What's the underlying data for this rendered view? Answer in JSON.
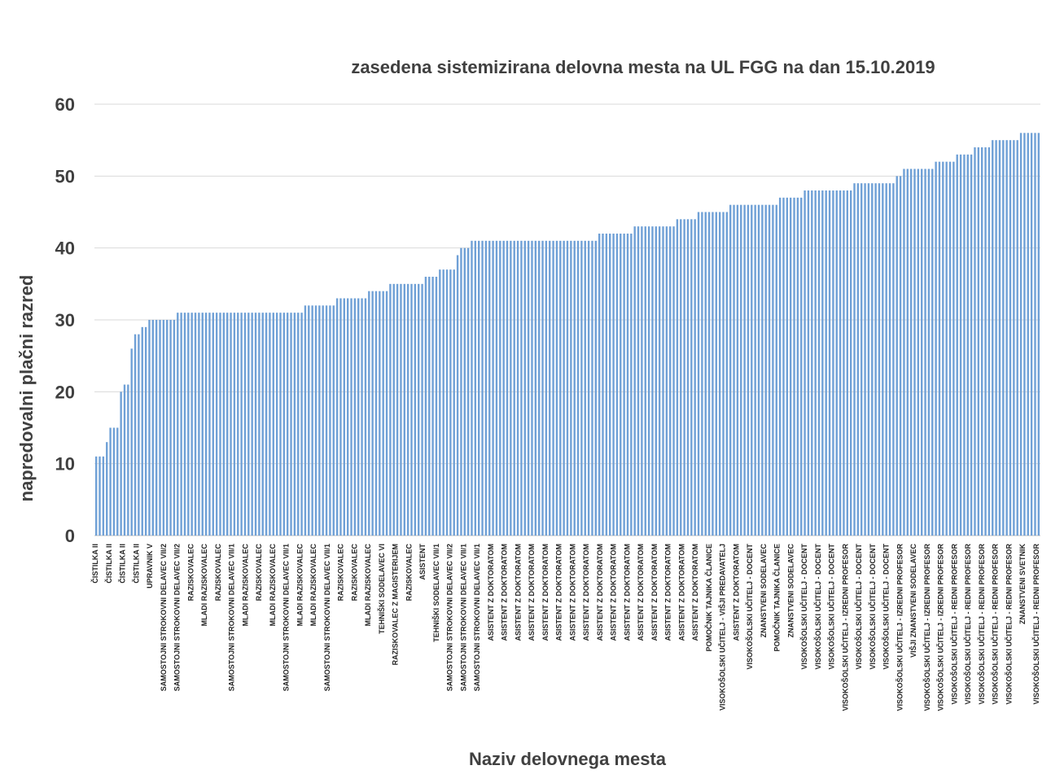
{
  "chart_data": {
    "type": "bar",
    "title": "zasedena sistemizirana delovna mesta na UL FGG na dan 15.10.2019",
    "xlabel": "Naziv delovnega mesta",
    "ylabel": "napredovalni plačni razred",
    "ylim": [
      0,
      60
    ],
    "yticks": [
      0,
      10,
      20,
      30,
      40,
      50,
      60
    ],
    "grid": true,
    "legend": "none",
    "bar_color": "#6fa0d6",
    "segments": [
      {
        "value": 11,
        "count": 3
      },
      {
        "value": 13,
        "count": 1
      },
      {
        "value": 15,
        "count": 3
      },
      {
        "value": 20,
        "count": 1
      },
      {
        "value": 21,
        "count": 2
      },
      {
        "value": 26,
        "count": 1
      },
      {
        "value": 28,
        "count": 2
      },
      {
        "value": 29,
        "count": 2
      },
      {
        "value": 30,
        "count": 8
      },
      {
        "value": 31,
        "count": 36
      },
      {
        "value": 32,
        "count": 9
      },
      {
        "value": 33,
        "count": 9
      },
      {
        "value": 34,
        "count": 6
      },
      {
        "value": 35,
        "count": 10
      },
      {
        "value": 36,
        "count": 4
      },
      {
        "value": 37,
        "count": 5
      },
      {
        "value": 39,
        "count": 1
      },
      {
        "value": 40,
        "count": 3
      },
      {
        "value": 41,
        "count": 36
      },
      {
        "value": 42,
        "count": 10
      },
      {
        "value": 43,
        "count": 12
      },
      {
        "value": 44,
        "count": 6
      },
      {
        "value": 45,
        "count": 9
      },
      {
        "value": 46,
        "count": 14
      },
      {
        "value": 47,
        "count": 7
      },
      {
        "value": 48,
        "count": 14
      },
      {
        "value": 49,
        "count": 12
      },
      {
        "value": 50,
        "count": 2
      },
      {
        "value": 51,
        "count": 9
      },
      {
        "value": 52,
        "count": 6
      },
      {
        "value": 53,
        "count": 5
      },
      {
        "value": 54,
        "count": 5
      },
      {
        "value": 55,
        "count": 8
      },
      {
        "value": 56,
        "count": 6
      }
    ],
    "x_tick_labels": [
      "ČISTILKA II",
      "ČISTILKA II",
      "ČISTILKA II",
      "ČISTILKA II",
      "UPRAVNIK V",
      "SAMOSTOJNI STROKOVNI DELAVEC VII/2",
      "SAMOSTOJNI STROKOVNI DELAVEC VII/2",
      "RAZISKOVALEC",
      "MLADI RAZISKOVALEC",
      "RAZISKOVALEC",
      "SAMOSTOJNI STROKOVNI DELAVEC VII/1",
      "MLADI RAZISKOVALEC",
      "RAZISKOVALEC",
      "MLADI RAZISKOVALEC",
      "SAMOSTOJNI STROKOVNI DELAVEC VII/1",
      "MLADI RAZISKOVALEC",
      "MLADI RAZISKOVALEC",
      "SAMOSTOJNI STROKOVNI DELAVEC VII/1",
      "RAZISKOVALEC",
      "RAZISKOVALEC",
      "MLADI RAZISKOVALEC",
      "TEHNIŠKI SODELAVEC VI",
      "RAZISKOVALEC Z MAGISTERIJEM",
      "RAZISKOVALEC",
      "ASISTENT",
      "TEHNIŠKI SODELAVEC VII/1",
      "SAMOSTOJNI STROKOVNI DELAVEC VII/2",
      "SAMOSTOJNI STROKOVNI DELAVEC VII/1",
      "SAMOSTOJNI STROKOVNI DELAVEC VII/1",
      "ASISTENT Z DOKTORATOM",
      "ASISTENT Z DOKTORATOM",
      "ASISTENT Z DOKTORATOM",
      "ASISTENT Z DOKTORATOM",
      "ASISTENT Z DOKTORATOM",
      "ASISTENT Z DOKTORATOM",
      "ASISTENT Z DOKTORATOM",
      "ASISTENT Z DOKTORATOM",
      "ASISTENT Z DOKTORATOM",
      "ASISTENT Z DOKTORATOM",
      "ASISTENT Z DOKTORATOM",
      "ASISTENT Z DOKTORATOM",
      "ASISTENT Z DOKTORATOM",
      "ASISTENT Z DOKTORATOM",
      "ASISTENT Z DOKTORATOM",
      "ASISTENT Z DOKTORATOM",
      "POMOČNIK TAJNIKA ČLANICE",
      "VISOKOŠOLSKI UČITELJ - VIŠJI PREDAVATELJ",
      "ASISTENT Z DOKTORATOM",
      "VISOKOŠOLSKI UČITELJ - DOCENT",
      "ZNANSTVENI SODELAVEC",
      "POMOČNIK TAJNIKA ČLANICE",
      "ZNANSTVENI SODELAVEC",
      "VISOKOŠOLSKI UČITELJ - DOCENT",
      "VISOKOŠOLSKI UČITELJ - DOCENT",
      "VISOKOŠOLSKI UČITELJ - DOCENT",
      "VISOKOŠOLSKI UČITELJ - IZREDNI PROFESOR",
      "VISOKOŠOLSKI UČITELJ - DOCENT",
      "VISOKOŠOLSKI UČITELJ - DOCENT",
      "VISOKOŠOLSKI UČITELJ - DOCENT",
      "VISOKOŠOLSKI UČITELJ - IZREDNI PROFESOR",
      "VIŠJI ZNANSTVENI SODELAVEC",
      "VISOKOŠOLSKI UČITELJ - IZREDNI PROFESOR",
      "VISOKOŠOLSKI UČITELJ - IZREDNI PROFESOR",
      "VISOKOŠOLSKI UČITELJ - REDNI PROFESOR",
      "VISOKOŠOLSKI UČITELJ - REDNI PROFESOR",
      "VISOKOŠOLSKI UČITELJ - REDNI PROFESOR",
      "VISOKOŠOLSKI UČITELJ - REDNI PROFESOR",
      "VISOKOŠOLSKI UČITELJ - REDNI PROFESOR",
      "ZNANSTVENI SVETNIK",
      "VISOKOŠOLSKI UČITELJ - REDNI PROFESOR"
    ]
  }
}
